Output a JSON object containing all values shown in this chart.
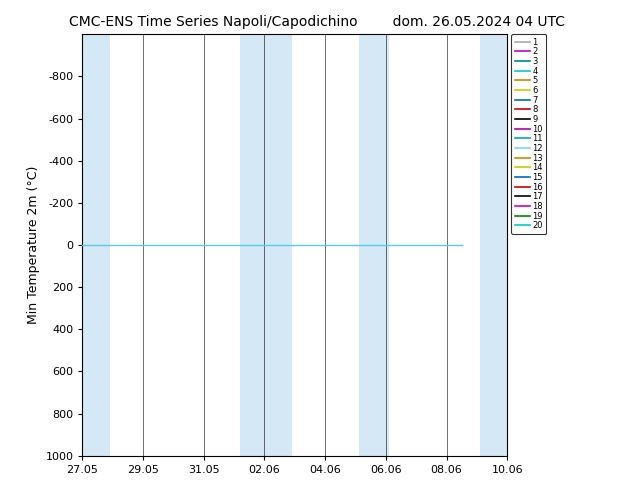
{
  "title": "CMC-ENS Time Series Napoli/Capodichino",
  "title2": "dom. 26.05.2024 04 UTC",
  "ylabel": "Min Temperature 2m (°C)",
  "ylim_bottom": 1000,
  "ylim_top": -1000,
  "yticks": [
    -800,
    -600,
    -400,
    -200,
    0,
    200,
    400,
    600,
    800,
    1000
  ],
  "xtick_labels": [
    "27.05",
    "29.05",
    "31.05",
    "02.06",
    "04.06",
    "06.06",
    "08.06",
    "10.06"
  ],
  "xtick_positions": [
    0,
    2,
    4,
    6,
    8,
    10,
    12,
    14
  ],
  "background_color": "#ffffff",
  "plot_bg_color": "#ffffff",
  "band_color": "#d5e8f5",
  "n_members": 20,
  "member_colors": [
    "#aaaaaa",
    "#cc00cc",
    "#008888",
    "#00cccc",
    "#cc8800",
    "#cccc00",
    "#0066cc",
    "#cc0000",
    "#000000",
    "#aa00aa",
    "#00aaaa",
    "#88ccff",
    "#cc8800",
    "#cccc00",
    "#0066cc",
    "#cc0000",
    "#000000",
    "#cc00cc",
    "#008800",
    "#00cccc"
  ],
  "line_value": 0,
  "line_color": "#55ccee",
  "line_x_end": 12.5,
  "total_days": 14,
  "shaded_bands": [
    [
      0.0,
      0.9
    ],
    [
      5.2,
      6.9
    ],
    [
      9.1,
      10.1
    ],
    [
      13.1,
      14.0
    ]
  ],
  "title_fontsize": 10,
  "tick_fontsize": 8,
  "ylabel_fontsize": 9
}
